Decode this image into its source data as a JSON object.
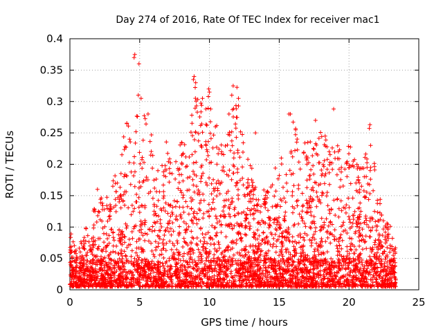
{
  "chart_data": {
    "type": "scatter",
    "title": "Day 274 of 2016, Rate Of TEC Index for receiver mac1",
    "xlabel": "GPS time / hours",
    "ylabel": "ROTI / TECUs",
    "xlim": [
      0,
      25
    ],
    "ylim": [
      0,
      0.4
    ],
    "grid": true,
    "marker": "+",
    "color": "#ff0000",
    "x_ticks": [
      0,
      5,
      10,
      15,
      20,
      25
    ],
    "x_tick_labels": [
      "0",
      "5",
      "10",
      "15",
      "20",
      "25"
    ],
    "y_ticks": [
      0,
      0.05,
      0.1,
      0.15,
      0.2,
      0.25,
      0.3,
      0.35,
      0.4
    ],
    "y_tick_labels": [
      "0",
      "0.05",
      "0.1",
      "0.15",
      "0.2",
      "0.25",
      "0.3",
      "0.35",
      "0.4"
    ],
    "data_x_range": [
      0,
      23.35
    ],
    "envelope": {
      "x": [
        0,
        0.3,
        0.5,
        1.0,
        1.5,
        2.0,
        2.5,
        3.0,
        3.5,
        4.0,
        4.5,
        5.0,
        5.5,
        6.0,
        6.5,
        7.0,
        7.5,
        8.0,
        8.5,
        9.0,
        9.5,
        10.0,
        10.5,
        11.0,
        11.5,
        12.0,
        12.5,
        13.0,
        13.5,
        14.0,
        14.5,
        15.0,
        15.5,
        16.0,
        16.5,
        17.0,
        17.5,
        18.0,
        18.5,
        19.0,
        19.5,
        20.0,
        20.5,
        21.0,
        21.5,
        22.0,
        22.5,
        23.0,
        23.35
      ],
      "y": [
        0.1,
        0.07,
        0.06,
        0.1,
        0.08,
        0.19,
        0.12,
        0.2,
        0.18,
        0.27,
        0.24,
        0.31,
        0.27,
        0.23,
        0.19,
        0.24,
        0.2,
        0.25,
        0.22,
        0.34,
        0.3,
        0.31,
        0.26,
        0.22,
        0.28,
        0.32,
        0.22,
        0.2,
        0.14,
        0.17,
        0.17,
        0.22,
        0.18,
        0.28,
        0.22,
        0.24,
        0.22,
        0.27,
        0.22,
        0.23,
        0.22,
        0.23,
        0.2,
        0.19,
        0.26,
        0.17,
        0.11,
        0.1,
        0.06
      ]
    },
    "spikes": [
      {
        "x": 4.6,
        "y": 0.37
      },
      {
        "x": 4.65,
        "y": 0.375
      },
      {
        "x": 4.95,
        "y": 0.36
      },
      {
        "x": 4.9,
        "y": 0.31
      },
      {
        "x": 5.1,
        "y": 0.305
      },
      {
        "x": 5.6,
        "y": 0.28
      },
      {
        "x": 8.9,
        "y": 0.34
      },
      {
        "x": 8.85,
        "y": 0.335
      },
      {
        "x": 9.5,
        "y": 0.305
      },
      {
        "x": 9.95,
        "y": 0.32
      },
      {
        "x": 10.0,
        "y": 0.315
      },
      {
        "x": 11.7,
        "y": 0.325
      },
      {
        "x": 11.6,
        "y": 0.31
      },
      {
        "x": 11.4,
        "y": 0.28
      },
      {
        "x": 13.3,
        "y": 0.25
      },
      {
        "x": 15.7,
        "y": 0.28
      },
      {
        "x": 15.8,
        "y": 0.28
      },
      {
        "x": 17.6,
        "y": 0.27
      },
      {
        "x": 18.9,
        "y": 0.288
      },
      {
        "x": 20.3,
        "y": 0.205
      },
      {
        "x": 21.5,
        "y": 0.263
      },
      {
        "x": 21.55,
        "y": 0.23
      }
    ]
  }
}
